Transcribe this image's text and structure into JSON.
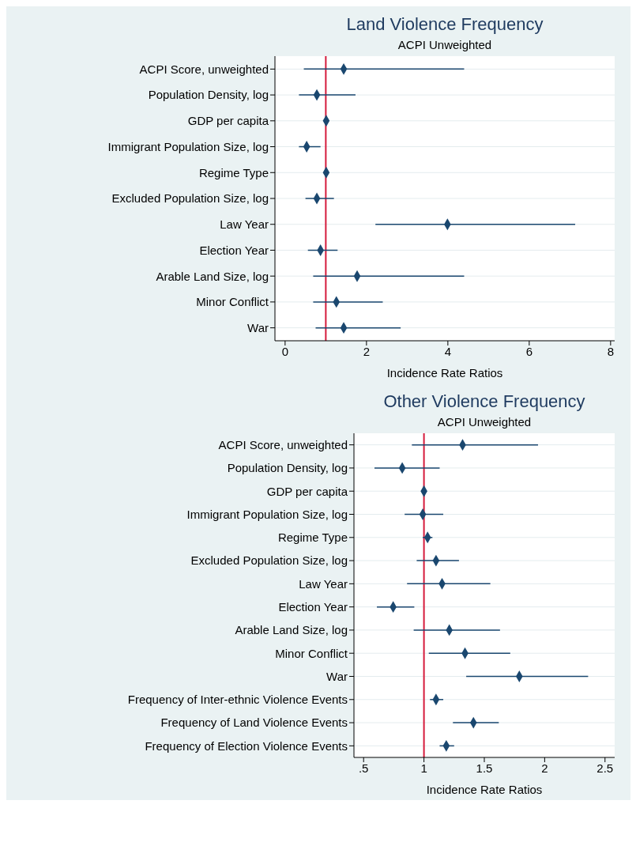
{
  "chart_data": [
    {
      "type": "scatter",
      "title": "Land Violence Frequency",
      "subtitle": "ACPI Unweighted",
      "xlabel": "Incidence Rate Ratios",
      "categories": [
        "ACPI Score, unweighted",
        "Population Density, log",
        "GDP per capita",
        "Immigrant Population Size, log",
        "Regime Type",
        "Excluded Population Size, log",
        "Law Year",
        "Election Year",
        "Arable Land Size, log",
        "Minor Conflict",
        "War"
      ],
      "series": [
        {
          "color": "#1a476f",
          "values": [
            1.44,
            0.78,
            1.01,
            0.53,
            1.01,
            0.78,
            3.99,
            0.87,
            1.77,
            1.26,
            1.44
          ],
          "errors": [
            [
              0.46,
              4.4
            ],
            [
              0.34,
              1.73
            ],
            null,
            [
              0.34,
              0.87
            ],
            null,
            [
              0.5,
              1.2
            ],
            [
              2.22,
              7.13
            ],
            [
              0.56,
              1.29
            ],
            [
              0.69,
              4.4
            ],
            [
              0.69,
              2.4
            ],
            [
              0.75,
              2.84
            ]
          ]
        }
      ],
      "orientation": "horizontal",
      "xlim": [
        -0.25,
        8.1
      ],
      "xticks": [
        0,
        2,
        4,
        6,
        8
      ],
      "grid": "y",
      "marker": "diamond",
      "ref_lines": [
        {
          "axis": "x",
          "value": 1,
          "color": "#d51b3c"
        }
      ]
    },
    {
      "type": "scatter",
      "title": "Other Violence Frequency",
      "subtitle": "ACPI Unweighted",
      "xlabel": "Incidence Rate Ratios",
      "categories": [
        "ACPI Score, unweighted",
        "Population Density, log",
        "GDP per capita",
        "Immigrant Population Size, log",
        "Regime Type",
        "Excluded Population Size, log",
        "Law Year",
        "Election Year",
        "Arable Land Size, log",
        "Minor Conflict",
        "War",
        "Frequency of Inter-ethnic Violence Events",
        "Frequency of Land Violence Events",
        "Frequency of Election Violence Events"
      ],
      "series": [
        {
          "color": "#1a476f",
          "values": [
            1.32,
            0.82,
            1.0,
            0.99,
            1.03,
            1.1,
            1.15,
            0.745,
            1.21,
            1.34,
            1.79,
            1.1,
            1.41,
            1.185
          ],
          "errors": [
            [
              0.9,
              1.945
            ],
            [
              0.59,
              1.13
            ],
            null,
            [
              0.84,
              1.16
            ],
            [
              0.99,
              1.07
            ],
            [
              0.94,
              1.29
            ],
            [
              0.86,
              1.55
            ],
            [
              0.61,
              0.92
            ],
            [
              0.915,
              1.63
            ],
            [
              1.04,
              1.715
            ],
            [
              1.35,
              2.36
            ],
            [
              1.05,
              1.16
            ],
            [
              1.24,
              1.62
            ],
            [
              1.13,
              1.25
            ]
          ]
        }
      ],
      "orientation": "horizontal",
      "xlim": [
        0.42,
        2.58
      ],
      "xticks": [
        {
          "value": 0.5,
          "label": ".5"
        },
        1,
        1.5,
        2,
        2.5
      ],
      "grid": "y",
      "marker": "diamond",
      "ref_lines": [
        {
          "axis": "x",
          "value": 1,
          "color": "#d51b3c"
        }
      ]
    }
  ]
}
